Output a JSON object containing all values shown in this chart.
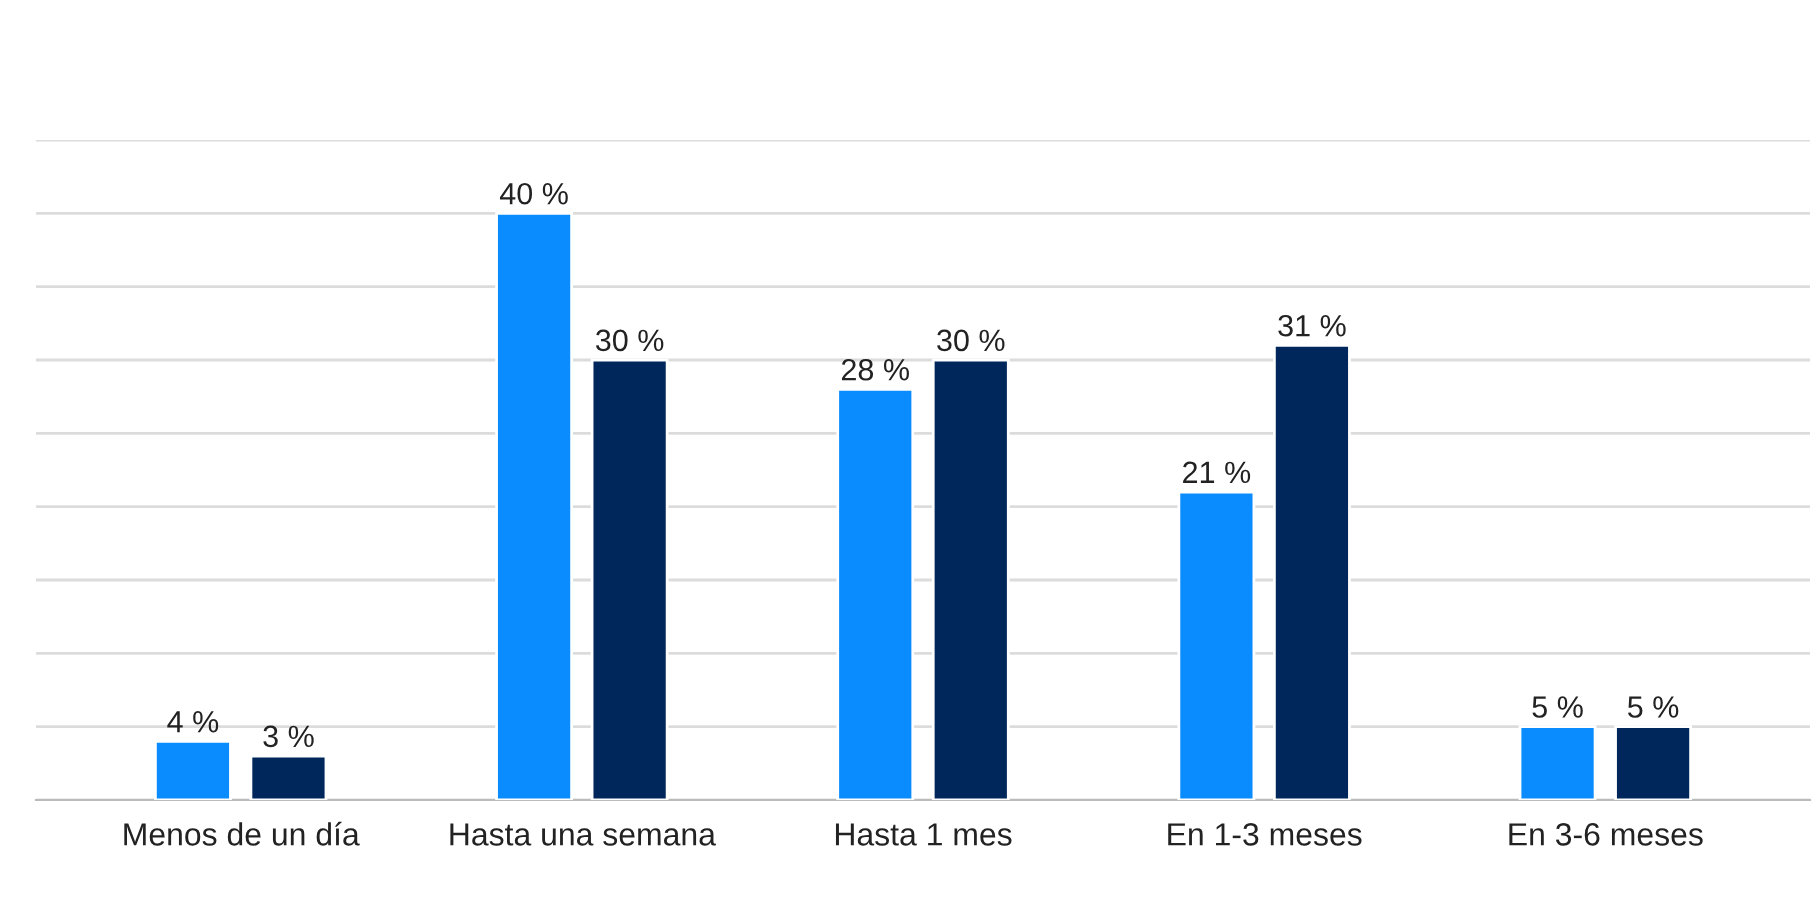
{
  "chart_data": {
    "type": "bar",
    "categories": [
      "Menos de un día",
      "Hasta una semana",
      "Hasta 1 mes",
      "En 1-3 meses",
      "En 3-6 meses"
    ],
    "series": [
      {
        "color": "#0a8cff",
        "values": [
          4,
          40,
          28,
          21,
          5
        ],
        "value_labels": [
          "4 %",
          "40 %",
          "28 %",
          "21 %",
          "5 %"
        ]
      },
      {
        "color": "#00275b",
        "values": [
          3,
          30,
          30,
          31,
          5
        ],
        "value_labels": [
          "3 %",
          "30 %",
          "30 %",
          "31 %",
          "5 %"
        ]
      }
    ],
    "ylim": [
      0,
      45
    ],
    "yticks": [
      {
        "value": 0,
        "label": null
      },
      {
        "value": 5,
        "label": null
      },
      {
        "value": 10,
        "label": null
      },
      {
        "value": 15,
        "label": null
      },
      {
        "value": 20,
        "label": null
      },
      {
        "value": 25,
        "label": null
      },
      {
        "value": 30,
        "label": null
      },
      {
        "value": 35,
        "label": null
      },
      {
        "value": 40,
        "label": null
      },
      {
        "value": 45,
        "label": null
      }
    ],
    "grid": "y",
    "tick_labels": "x"
  }
}
